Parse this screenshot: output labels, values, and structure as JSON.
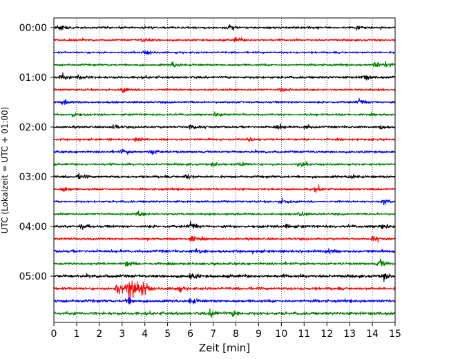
{
  "chart_data": {
    "type": "line",
    "title": "",
    "xlabel": "Zeit  [min]",
    "ylabel": "UTC (Lokalzeit = UTC + 01:00)",
    "xlim": [
      0,
      15
    ],
    "x_ticks": [
      0,
      1,
      2,
      3,
      4,
      5,
      6,
      7,
      8,
      9,
      10,
      11,
      12,
      13,
      14,
      15
    ],
    "y_ticks": [
      {
        "label": "00:00",
        "row": 0
      },
      {
        "label": "01:00",
        "row": 4
      },
      {
        "label": "02:00",
        "row": 8
      },
      {
        "label": "03:00",
        "row": 12
      },
      {
        "label": "04:00",
        "row": 16
      },
      {
        "label": "05:00",
        "row": 20
      }
    ],
    "rows_per_hour": 4,
    "minutes_per_row": 15,
    "grid": "vertical-dotted",
    "trace_colors": [
      "#000000",
      "#ff0000",
      "#0000ff",
      "#008000"
    ],
    "traces": [
      {
        "start": "00:00",
        "amplitude": 1.0,
        "events": [
          {
            "t": 0.2,
            "a": 2.0
          },
          {
            "t": 7.7,
            "a": 2.0
          },
          {
            "t": 13.3,
            "a": 1.8
          }
        ]
      },
      {
        "start": "00:15",
        "amplitude": 1.0,
        "events": [
          {
            "t": 3.9,
            "a": 1.6
          },
          {
            "t": 8.0,
            "a": 1.6
          }
        ]
      },
      {
        "start": "00:30",
        "amplitude": 0.9,
        "events": [
          {
            "t": 4.0,
            "a": 1.6
          }
        ]
      },
      {
        "start": "00:45",
        "amplitude": 1.0,
        "events": [
          {
            "t": 5.2,
            "a": 2.2
          },
          {
            "t": 14.1,
            "a": 2.0
          },
          {
            "t": 14.6,
            "a": 2.0
          }
        ]
      },
      {
        "start": "01:00",
        "amplitude": 1.1,
        "events": [
          {
            "t": 0.3,
            "a": 1.8
          },
          {
            "t": 1.1,
            "a": 2.0
          },
          {
            "t": 13.6,
            "a": 1.8
          }
        ]
      },
      {
        "start": "01:15",
        "amplitude": 1.0,
        "events": [
          {
            "t": 3.0,
            "a": 1.8
          },
          {
            "t": 10.0,
            "a": 1.8
          }
        ]
      },
      {
        "start": "01:30",
        "amplitude": 1.0,
        "events": [
          {
            "t": 0.4,
            "a": 1.6
          },
          {
            "t": 13.4,
            "a": 1.8
          }
        ]
      },
      {
        "start": "01:45",
        "amplitude": 1.0,
        "events": [
          {
            "t": 0.8,
            "a": 1.8
          },
          {
            "t": 7.1,
            "a": 1.6
          }
        ]
      },
      {
        "start": "02:00",
        "amplitude": 1.0,
        "events": [
          {
            "t": 2.6,
            "a": 1.6
          },
          {
            "t": 6.0,
            "a": 1.9
          },
          {
            "t": 9.8,
            "a": 2.0
          },
          {
            "t": 11.0,
            "a": 1.6
          },
          {
            "t": 14.3,
            "a": 1.8
          }
        ]
      },
      {
        "start": "02:15",
        "amplitude": 1.0,
        "events": [
          {
            "t": 3.6,
            "a": 1.6
          },
          {
            "t": 8.5,
            "a": 1.6
          }
        ]
      },
      {
        "start": "02:30",
        "amplitude": 1.1,
        "events": [
          {
            "t": 3.0,
            "a": 1.6
          },
          {
            "t": 4.3,
            "a": 2.0
          }
        ]
      },
      {
        "start": "02:45",
        "amplitude": 1.0,
        "events": [
          {
            "t": 7.0,
            "a": 1.6
          },
          {
            "t": 8.2,
            "a": 1.6
          },
          {
            "t": 10.8,
            "a": 1.6
          }
        ]
      },
      {
        "start": "03:00",
        "amplitude": 1.1,
        "events": [
          {
            "t": 1.1,
            "a": 1.8
          },
          {
            "t": 5.8,
            "a": 1.8
          },
          {
            "t": 13.0,
            "a": 1.6
          }
        ]
      },
      {
        "start": "03:15",
        "amplitude": 1.0,
        "events": [
          {
            "t": 0.4,
            "a": 1.8
          },
          {
            "t": 11.5,
            "a": 1.6
          }
        ]
      },
      {
        "start": "03:30",
        "amplitude": 1.0,
        "events": [
          {
            "t": 10.0,
            "a": 1.8
          },
          {
            "t": 14.5,
            "a": 1.6
          }
        ]
      },
      {
        "start": "03:45",
        "amplitude": 1.0,
        "events": [
          {
            "t": 3.7,
            "a": 1.8
          },
          {
            "t": 10.8,
            "a": 1.6
          }
        ]
      },
      {
        "start": "04:00",
        "amplitude": 1.2,
        "events": [
          {
            "t": 1.2,
            "a": 1.8
          },
          {
            "t": 6.0,
            "a": 2.5
          },
          {
            "t": 10.2,
            "a": 1.8
          },
          {
            "t": 14.4,
            "a": 1.8
          }
        ]
      },
      {
        "start": "04:15",
        "amplitude": 1.1,
        "events": [
          {
            "t": 6.0,
            "a": 2.2
          },
          {
            "t": 14.0,
            "a": 1.8
          }
        ]
      },
      {
        "start": "04:30",
        "amplitude": 1.3,
        "events": [
          {
            "t": 6.3,
            "a": 2.0
          },
          {
            "t": 12.0,
            "a": 1.6
          }
        ]
      },
      {
        "start": "04:45",
        "amplitude": 1.2,
        "events": [
          {
            "t": 3.2,
            "a": 1.8
          },
          {
            "t": 14.3,
            "a": 3.2
          }
        ]
      },
      {
        "start": "05:00",
        "amplitude": 1.4,
        "events": [
          {
            "t": 6.0,
            "a": 1.8
          },
          {
            "t": 14.5,
            "a": 2.6
          }
        ]
      },
      {
        "start": "05:15",
        "amplitude": 1.3,
        "events": [
          {
            "t": 2.8,
            "a": 8.5
          },
          {
            "t": 3.3,
            "a": 11.0
          },
          {
            "t": 3.85,
            "a": 6.5
          },
          {
            "t": 5.4,
            "a": 2.0
          }
        ]
      },
      {
        "start": "05:30",
        "amplitude": 1.3,
        "events": [
          {
            "t": 3.2,
            "a": 2.2
          },
          {
            "t": 6.0,
            "a": 1.8
          }
        ]
      },
      {
        "start": "05:45",
        "amplitude": 1.4,
        "events": [
          {
            "t": 6.9,
            "a": 2.6
          },
          {
            "t": 7.9,
            "a": 2.2
          }
        ]
      }
    ]
  }
}
